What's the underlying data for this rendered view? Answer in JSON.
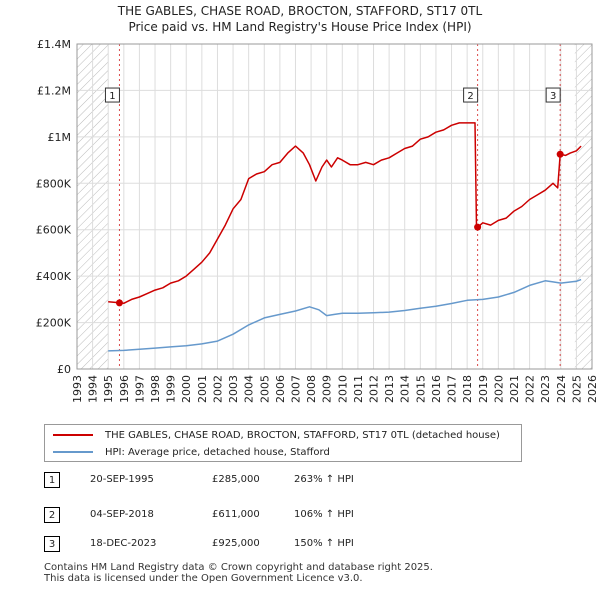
{
  "chart_data": {
    "type": "line",
    "title": "THE GABLES, CHASE ROAD, BROCTON, STAFFORD, ST17 0TL",
    "subtitle": "Price paid vs. HM Land Registry's House Price Index (HPI)",
    "xlabel": "",
    "ylabel": "",
    "xlim": [
      1993,
      2026
    ],
    "ylim": [
      0,
      1400000
    ],
    "y_ticks": [
      0,
      200000,
      400000,
      600000,
      800000,
      1000000,
      1200000,
      1400000
    ],
    "y_tick_labels": [
      "£0",
      "£200K",
      "£400K",
      "£600K",
      "£800K",
      "£1M",
      "£1.2M",
      "£1.4M"
    ],
    "x_ticks": [
      1993,
      1994,
      1995,
      1996,
      1997,
      1998,
      1999,
      2000,
      2001,
      2002,
      2003,
      2004,
      2005,
      2006,
      2007,
      2008,
      2009,
      2010,
      2011,
      2012,
      2013,
      2014,
      2015,
      2016,
      2017,
      2018,
      2019,
      2020,
      2021,
      2022,
      2023,
      2024,
      2025,
      2026
    ],
    "x_tick_labels": [
      "1993",
      "1994",
      "1995",
      "1996",
      "1997",
      "1998",
      "1999",
      "2000",
      "2001",
      "2002",
      "2003",
      "2004",
      "2005",
      "2006",
      "2007",
      "2008",
      "2009",
      "2010",
      "2011",
      "2012",
      "2013",
      "2014",
      "2015",
      "2016",
      "2017",
      "2018",
      "2019",
      "2020",
      "2021",
      "2022",
      "2023",
      "2024",
      "2025",
      "2026"
    ],
    "hatched_ranges": [
      [
        1993,
        1995
      ],
      [
        2024.9,
        2026
      ]
    ],
    "series": [
      {
        "name": "THE GABLES, CHASE ROAD, BROCTON, STAFFORD, ST17 0TL (detached house)",
        "color": "#cc0000",
        "x": [
          1995.0,
          1995.72,
          1996.0,
          1996.5,
          1997.0,
          1997.5,
          1998.0,
          1998.5,
          1999.0,
          1999.5,
          2000.0,
          2000.5,
          2001.0,
          2001.5,
          2002.0,
          2002.5,
          2003.0,
          2003.5,
          2004.0,
          2004.5,
          2005.0,
          2005.5,
          2006.0,
          2006.5,
          2007.0,
          2007.5,
          2007.9,
          2008.3,
          2008.7,
          2009.0,
          2009.3,
          2009.7,
          2010.0,
          2010.5,
          2011.0,
          2011.5,
          2012.0,
          2012.5,
          2013.0,
          2013.5,
          2014.0,
          2014.5,
          2015.0,
          2015.5,
          2016.0,
          2016.5,
          2017.0,
          2017.5,
          2018.0,
          2018.5,
          2018.6,
          2018.67,
          2019.0,
          2019.5,
          2020.0,
          2020.5,
          2021.0,
          2021.5,
          2022.0,
          2022.5,
          2023.0,
          2023.5,
          2023.8,
          2023.96,
          2024.3,
          2024.6,
          2025.0,
          2025.3
        ],
        "values": [
          290000,
          285000,
          283000,
          300000,
          310000,
          325000,
          340000,
          350000,
          370000,
          380000,
          400000,
          430000,
          460000,
          500000,
          560000,
          620000,
          690000,
          730000,
          820000,
          840000,
          850000,
          880000,
          890000,
          930000,
          960000,
          930000,
          880000,
          810000,
          870000,
          900000,
          870000,
          910000,
          900000,
          880000,
          880000,
          890000,
          880000,
          900000,
          910000,
          930000,
          950000,
          960000,
          990000,
          1000000,
          1020000,
          1030000,
          1050000,
          1060000,
          1060000,
          1060000,
          611000,
          611000,
          630000,
          620000,
          640000,
          650000,
          680000,
          700000,
          730000,
          750000,
          770000,
          800000,
          780000,
          925000,
          920000,
          930000,
          940000,
          960000
        ]
      },
      {
        "name": "HPI: Average price, detached house, Stafford",
        "color": "#6699cc",
        "x": [
          1995.0,
          1996.0,
          1997.0,
          1998.0,
          1999.0,
          2000.0,
          2001.0,
          2002.0,
          2003.0,
          2004.0,
          2005.0,
          2006.0,
          2007.0,
          2007.9,
          2008.5,
          2009.0,
          2009.5,
          2010.0,
          2011.0,
          2012.0,
          2013.0,
          2014.0,
          2015.0,
          2016.0,
          2017.0,
          2018.0,
          2019.0,
          2020.0,
          2021.0,
          2022.0,
          2023.0,
          2023.5,
          2024.0,
          2025.0,
          2025.3
        ],
        "values": [
          78000,
          80000,
          85000,
          90000,
          95000,
          100000,
          108000,
          120000,
          150000,
          190000,
          220000,
          235000,
          250000,
          268000,
          255000,
          230000,
          235000,
          240000,
          240000,
          242000,
          245000,
          252000,
          262000,
          270000,
          282000,
          296000,
          300000,
          310000,
          330000,
          360000,
          380000,
          375000,
          370000,
          378000,
          385000
        ]
      }
    ],
    "sales": [
      {
        "id": "1",
        "x": 1995.72,
        "value": 285000,
        "date": "20-SEP-1995",
        "price": "£285,000",
        "hpi": "263% ↑ HPI"
      },
      {
        "id": "2",
        "x": 2018.67,
        "value": 611000,
        "date": "04-SEP-2018",
        "price": "£611,000",
        "hpi": "106% ↑ HPI"
      },
      {
        "id": "3",
        "x": 2023.96,
        "value": 925000,
        "date": "18-DEC-2023",
        "price": "£925,000",
        "hpi": "150% ↑ HPI"
      }
    ],
    "marker_box_value": 1150000
  },
  "footer": {
    "line1": "Contains HM Land Registry data © Crown copyright and database right 2025.",
    "line2": "This data is licensed under the Open Government Licence v3.0."
  }
}
